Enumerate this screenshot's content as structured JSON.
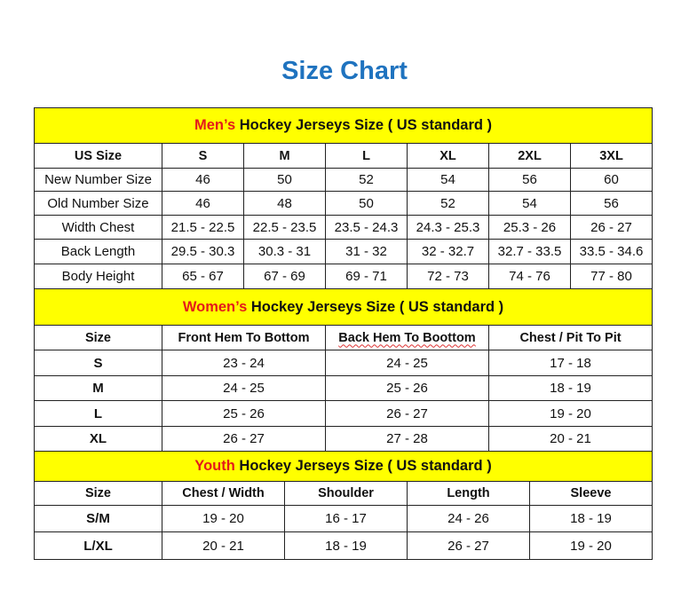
{
  "title": "Size Chart",
  "colors": {
    "title": "#1f73bf",
    "band": "#ffff00",
    "highlight": "#e41a1a"
  },
  "sections": [
    {
      "id": "mens",
      "highlight": "Men’s",
      "title_rest": " Hockey Jerseys Size ( US standard )",
      "band_height": 40,
      "widths": [
        144,
        92,
        92,
        92,
        92,
        92,
        92
      ],
      "columns": [
        "US Size",
        "S",
        "M",
        "L",
        "XL",
        "2XL",
        "3XL"
      ],
      "row_heights": [
        28,
        26,
        27,
        27,
        28,
        28
      ],
      "first_col_bold": false,
      "rows": [
        [
          "New Number Size",
          "46",
          "50",
          "52",
          "54",
          "56",
          "60"
        ],
        [
          "Old Number Size",
          "46",
          "48",
          "50",
          "52",
          "54",
          "56"
        ],
        [
          "Width Chest",
          "21.5 - 22.5",
          "22.5 - 23.5",
          "23.5 - 24.3",
          "24.3 - 25.3",
          "25.3 - 26",
          "26 - 27"
        ],
        [
          "Back Length",
          "29.5 - 30.3",
          "30.3 - 31",
          "31 - 32",
          "32 - 32.7",
          "32.7 - 33.5",
          "33.5 - 34.6"
        ],
        [
          "Body Height",
          "65 - 67",
          "67 - 69",
          "69 - 71",
          "72 - 73",
          "74 - 76",
          "77 - 80"
        ]
      ]
    },
    {
      "id": "womens",
      "highlight": "Women’s",
      "title_rest": " Hockey Jerseys Size ( US standard )",
      "band_height": 41,
      "widths": [
        144,
        184,
        184,
        184
      ],
      "columns": [
        "Size",
        "Front Hem To Bottom",
        "Back Hem To Boottom",
        "Chest / Pit To Pit"
      ],
      "row_heights": [
        28,
        29,
        28,
        29,
        28
      ],
      "first_col_bold": true,
      "rows": [
        [
          "S",
          "23 - 24",
          "24 - 25",
          "17 - 18"
        ],
        [
          "M",
          "24 - 25",
          "25 - 26",
          "18 - 19"
        ],
        [
          "L",
          "25 - 26",
          "26 - 27",
          "19 - 20"
        ],
        [
          "XL",
          "26 - 27",
          "27 - 28",
          "20 - 21"
        ]
      ]
    },
    {
      "id": "youth",
      "highlight": "Youth",
      "title_rest": " Hockey Jerseys Size ( US standard )",
      "band_height": 34,
      "widths": [
        144,
        138,
        138,
        138,
        138
      ],
      "columns": [
        "Size",
        "Chest / Width",
        "Shoulder",
        "Length",
        "Sleeve"
      ],
      "row_heights": [
        27,
        30,
        31
      ],
      "first_col_bold": true,
      "rows": [
        [
          "S/M",
          "19 - 20",
          "16 - 17",
          "24 - 26",
          "18 - 19"
        ],
        [
          "L/XL",
          "20 - 21",
          "18 - 19",
          "26 - 27",
          "19 - 20"
        ]
      ]
    }
  ]
}
